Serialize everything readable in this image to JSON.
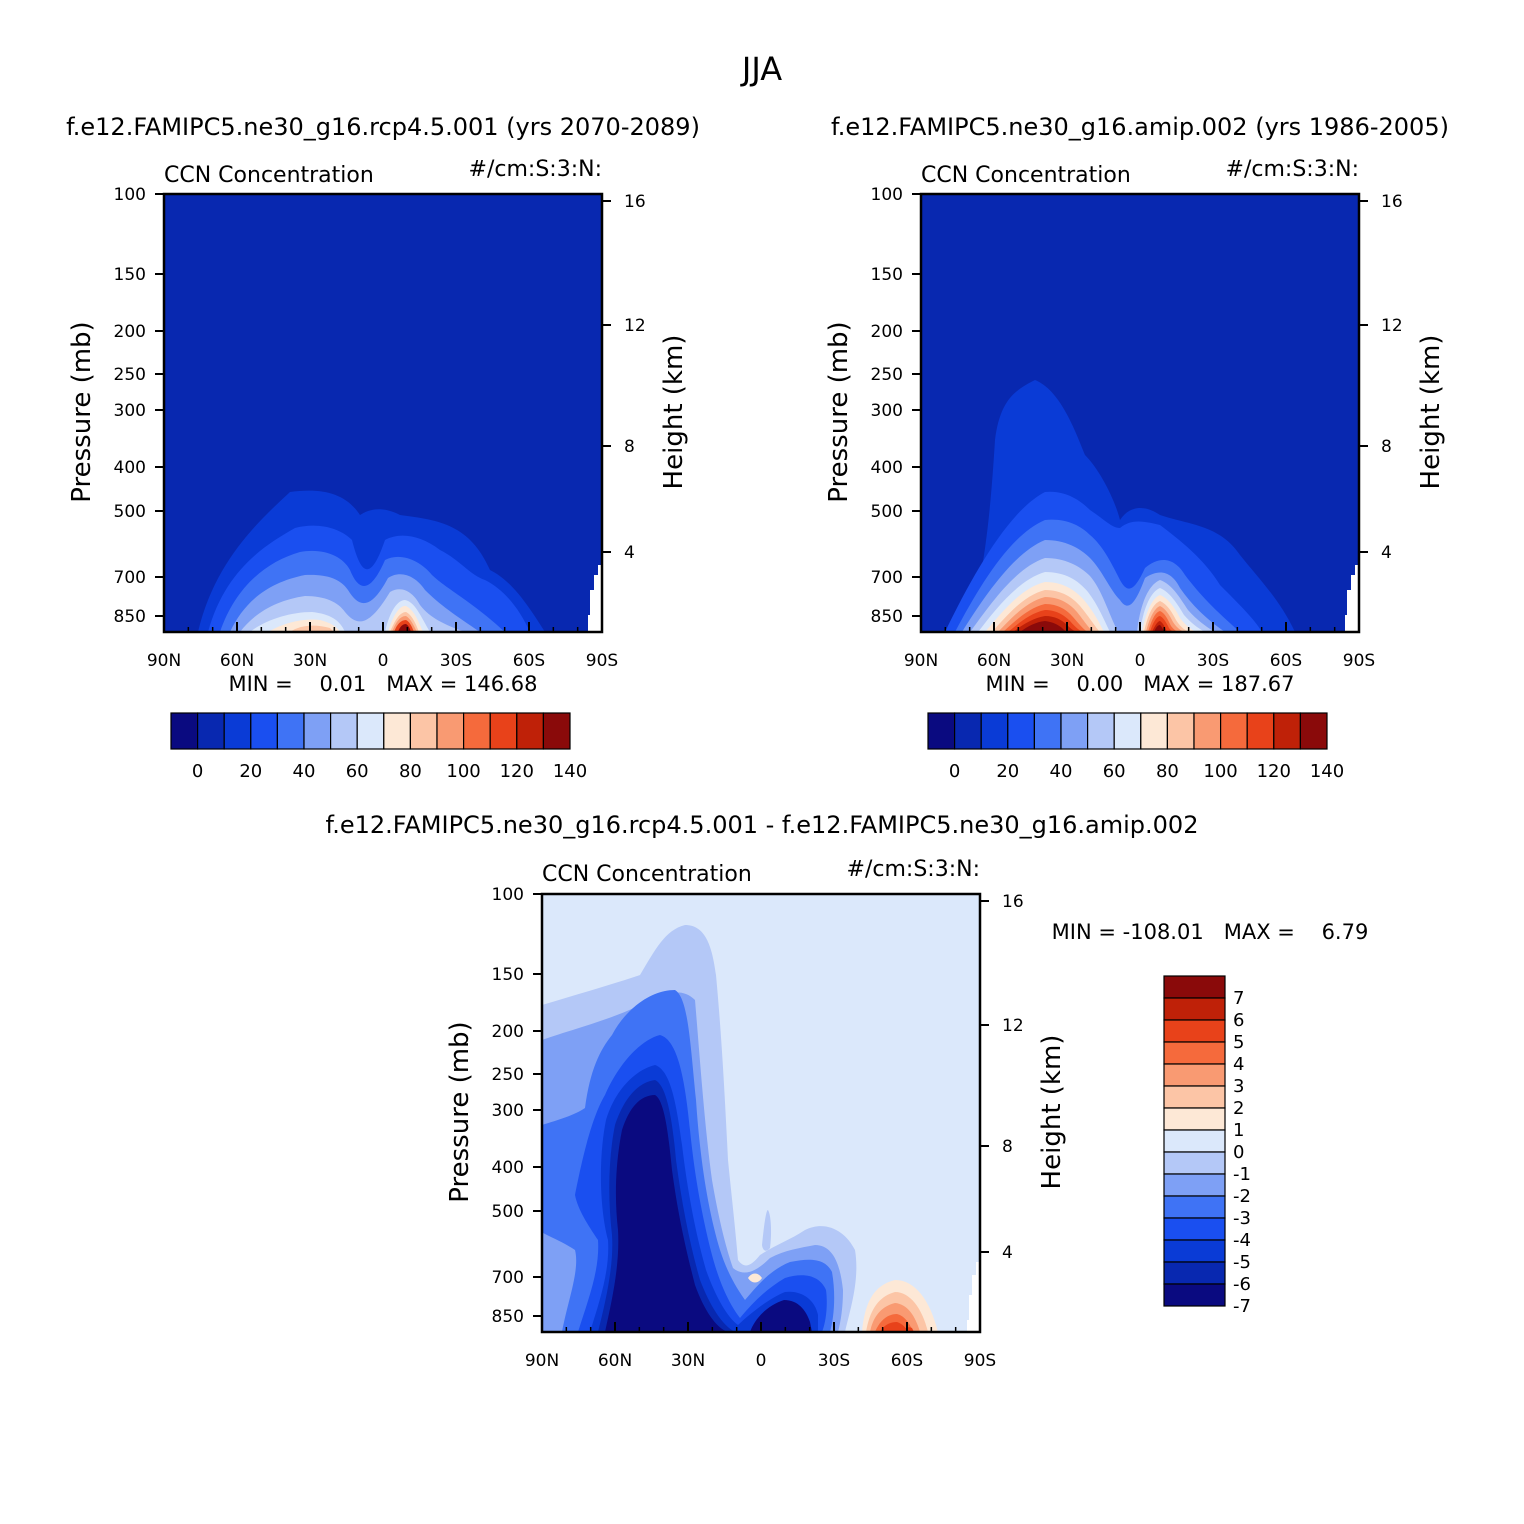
{
  "title": "JJA",
  "palette": [
    "#0a0a80",
    "#0828b0",
    "#0a3bd6",
    "#1a4ff0",
    "#3f73f5",
    "#7ea0f5",
    "#b4c8f7",
    "#dbe8fb",
    "#fde8d6",
    "#fcc5a6",
    "#f99a72",
    "#f56a3c",
    "#e8421a",
    "#bf2108",
    "#8a0a0a"
  ],
  "chart_data": [
    {
      "type": "heatmap",
      "case": "f.e12.FAMIPC5.ne30_g16.rcp4.5.001 (yrs 2070-2089)",
      "variable": "CCN Concentration",
      "units": "#/cm:S:3:N:",
      "ylabel": "Pressure (mb)",
      "y2label": "Height (km)",
      "x_ticks": [
        "90N",
        "60N",
        "30N",
        "0",
        "30S",
        "60S",
        "90S"
      ],
      "y_ticks": [
        "100",
        "150",
        "200",
        "250",
        "300",
        "400",
        "500",
        "700",
        "850"
      ],
      "y2_ticks": [
        "16",
        "12",
        "8",
        "4"
      ],
      "stats": "MIN =    0.01   MAX = 146.68",
      "min": 0.01,
      "max": 146.68,
      "colorbar_labels": [
        "0",
        "20",
        "40",
        "60",
        "80",
        "100",
        "120",
        "140"
      ],
      "contour_levels": [
        0,
        10,
        20,
        30,
        40,
        50,
        60,
        70,
        80,
        90,
        100,
        110,
        120,
        130,
        140
      ],
      "peaks": [
        {
          "lat": 40,
          "p": 900,
          "value": 80
        },
        {
          "lat": -8,
          "p": 900,
          "value": 146.68
        }
      ]
    },
    {
      "type": "heatmap",
      "case": "f.e12.FAMIPC5.ne30_g16.amip.002 (yrs 1986-2005)",
      "variable": "CCN Concentration",
      "units": "#/cm:S:3:N:",
      "ylabel": "Pressure (mb)",
      "y2label": "Height (km)",
      "x_ticks": [
        "90N",
        "60N",
        "30N",
        "0",
        "30S",
        "60S",
        "90S"
      ],
      "y_ticks": [
        "100",
        "150",
        "200",
        "250",
        "300",
        "400",
        "500",
        "700",
        "850"
      ],
      "y2_ticks": [
        "16",
        "12",
        "8",
        "4"
      ],
      "stats": "MIN =    0.00   MAX = 187.67",
      "min": 0.0,
      "max": 187.67,
      "colorbar_labels": [
        "0",
        "20",
        "40",
        "60",
        "80",
        "100",
        "120",
        "140"
      ],
      "contour_levels": [
        0,
        10,
        20,
        30,
        40,
        50,
        60,
        70,
        80,
        90,
        100,
        110,
        120,
        130,
        140
      ],
      "peaks": [
        {
          "lat": 40,
          "p": 900,
          "value": 187.67
        },
        {
          "lat": -8,
          "p": 900,
          "value": 150
        }
      ]
    },
    {
      "type": "heatmap",
      "case": "f.e12.FAMIPC5.ne30_g16.rcp4.5.001 - f.e12.FAMIPC5.ne30_g16.amip.002",
      "variable": "CCN Concentration",
      "units": "#/cm:S:3:N:",
      "ylabel": "Pressure (mb)",
      "y2label": "Height (km)",
      "x_ticks": [
        "90N",
        "60N",
        "30N",
        "0",
        "30S",
        "60S",
        "90S"
      ],
      "y_ticks": [
        "100",
        "150",
        "200",
        "250",
        "300",
        "400",
        "500",
        "700",
        "850"
      ],
      "y2_ticks": [
        "16",
        "12",
        "8",
        "4"
      ],
      "stats": "MIN = -108.01   MAX =    6.79",
      "min": -108.01,
      "max": 6.79,
      "colorbar_labels": [
        "7",
        "6",
        "5",
        "4",
        "3",
        "2",
        "1",
        "0",
        "-1",
        "-2",
        "-3",
        "-4",
        "-5",
        "-6",
        "-7"
      ],
      "contour_levels": [
        -7,
        -6,
        -5,
        -4,
        -3,
        -2,
        -1,
        0,
        1,
        2,
        3,
        4,
        5,
        6,
        7
      ]
    }
  ]
}
